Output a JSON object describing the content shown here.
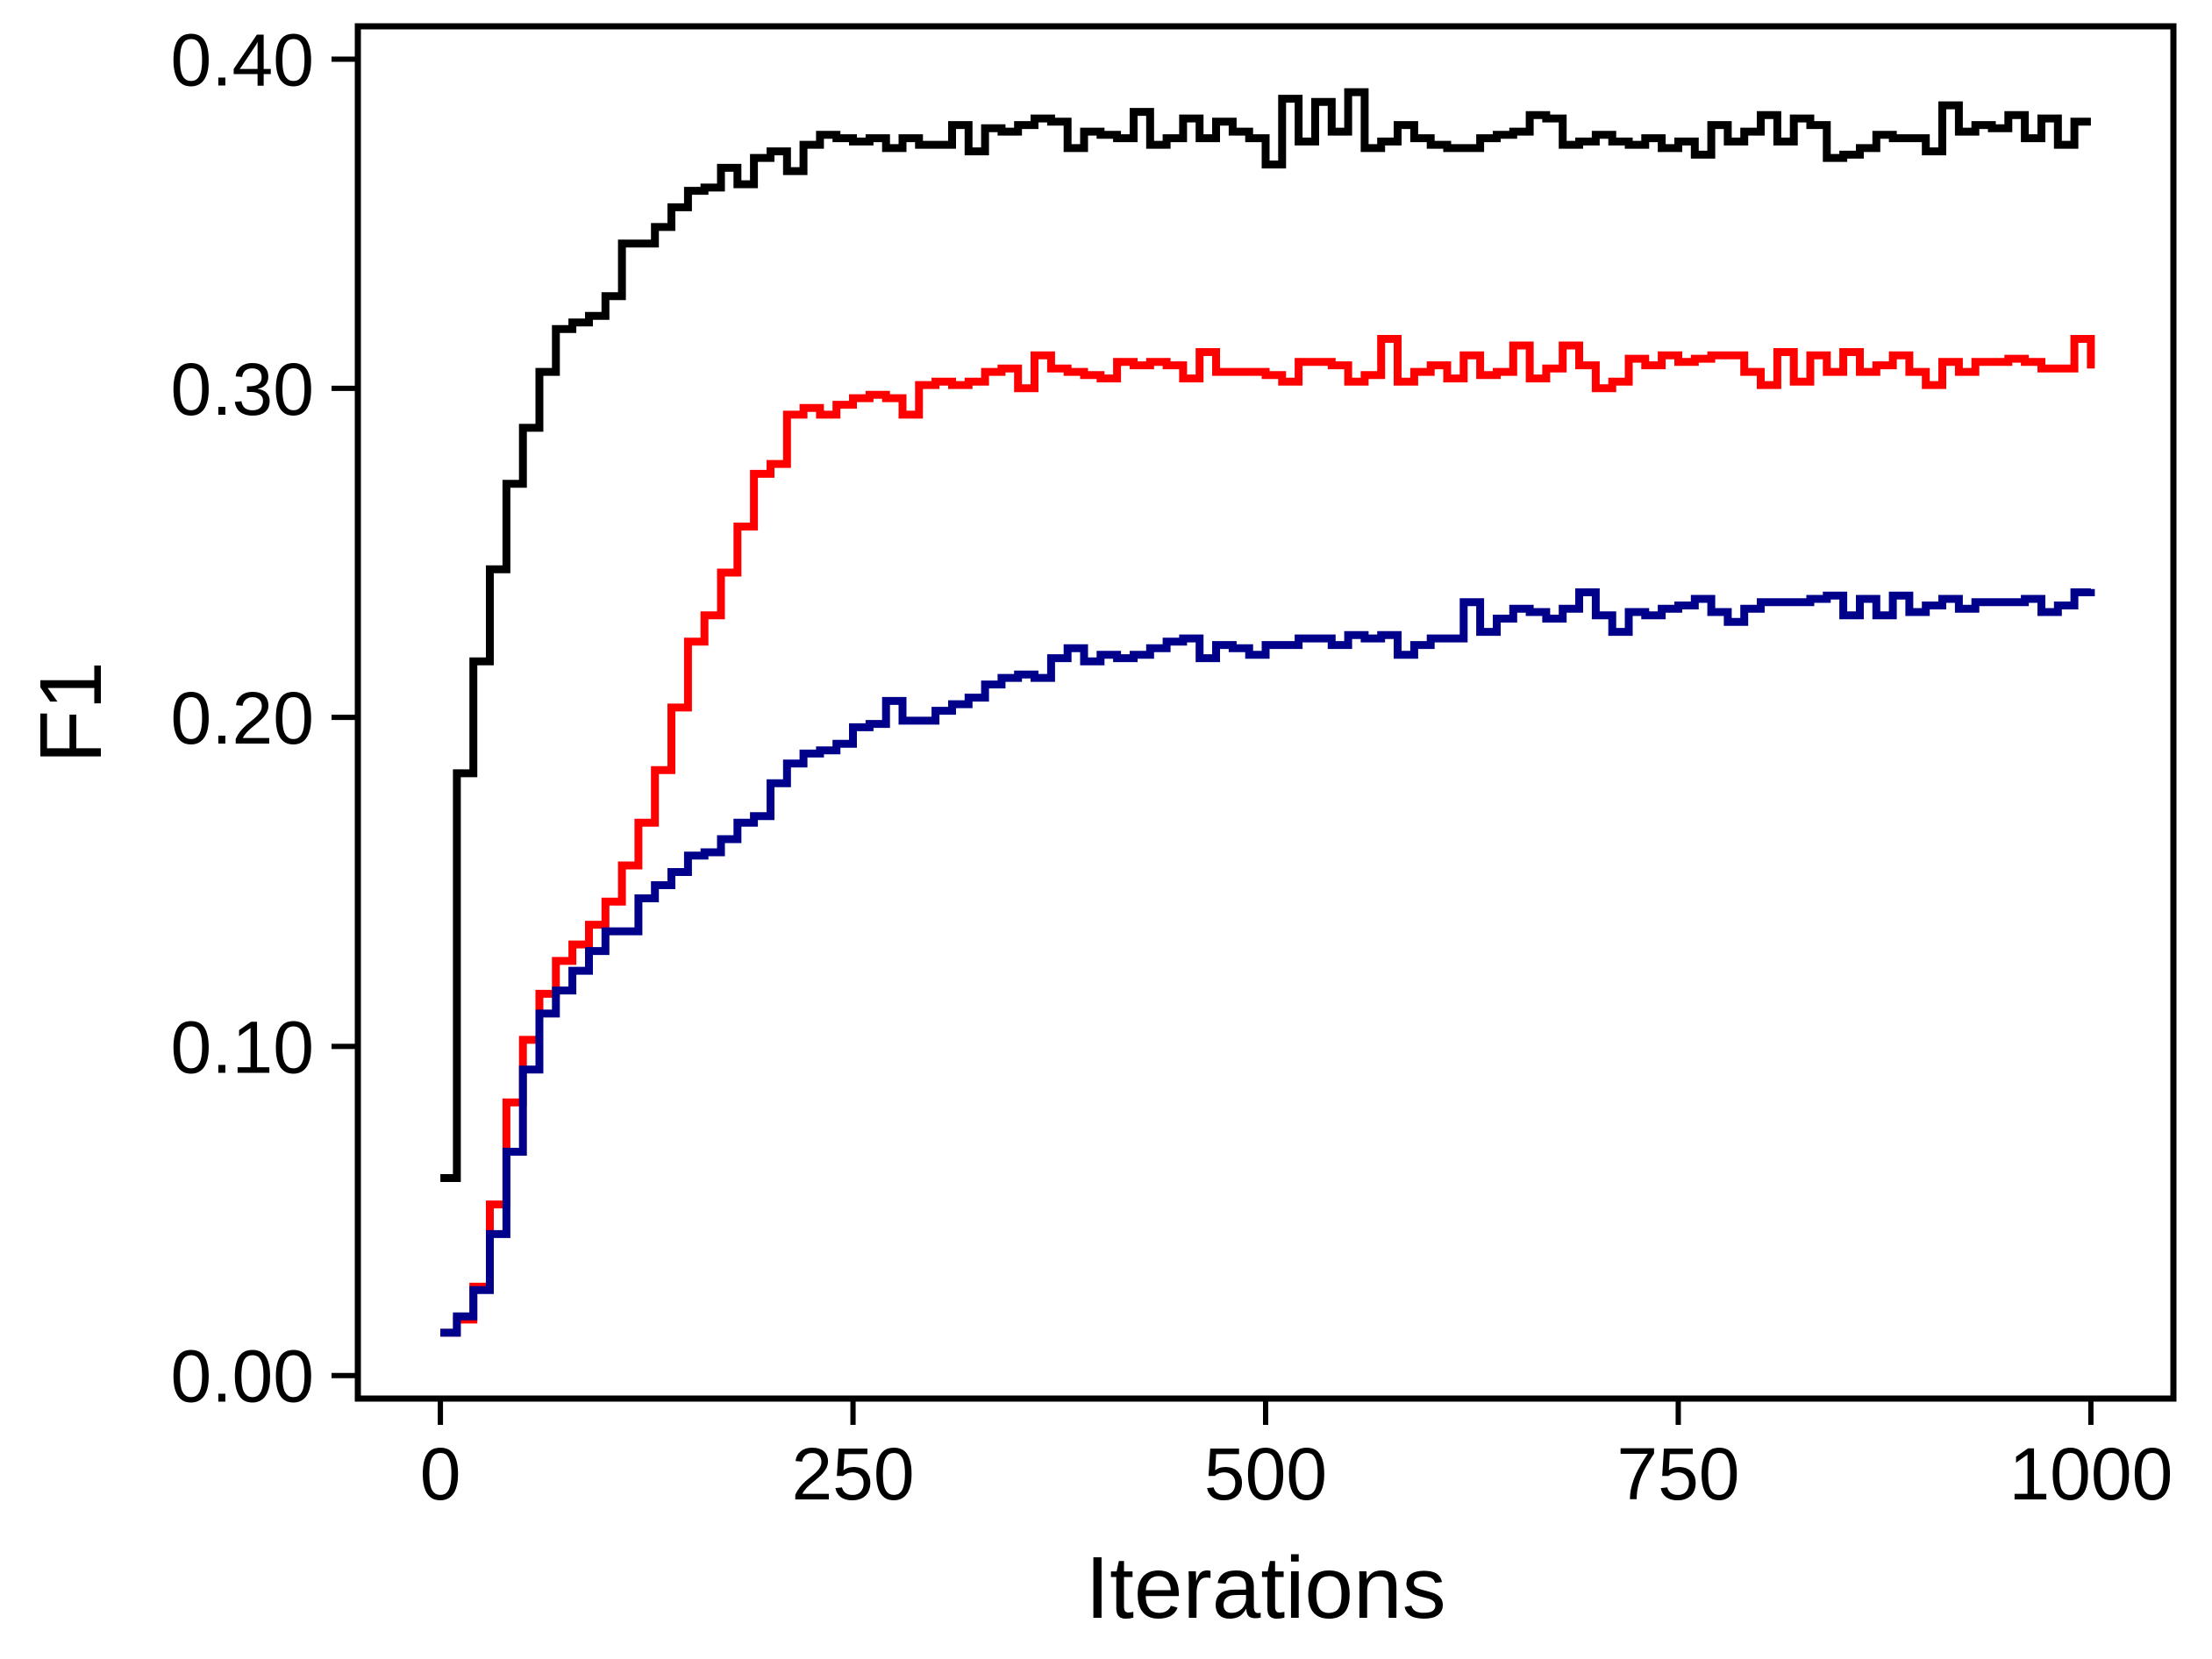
{
  "chart_data": {
    "type": "line",
    "title": "",
    "xlabel": "Iterations",
    "ylabel": "F1",
    "xlim": [
      -50,
      1050
    ],
    "ylim": [
      -0.007,
      0.41
    ],
    "x_ticks": [
      0,
      250,
      500,
      750,
      1000
    ],
    "x_tick_labels": [
      "0",
      "250",
      "500",
      "750",
      "1000"
    ],
    "y_ticks": [
      0.0,
      0.1,
      0.2,
      0.3,
      0.4
    ],
    "y_tick_labels": [
      "0.00",
      "0.10",
      "0.20",
      "0.30",
      "0.40"
    ],
    "grid": false,
    "legend": "none",
    "step_width": 10,
    "series": [
      {
        "color": "#000000",
        "x": [
          0,
          10,
          20,
          30,
          40,
          50,
          60,
          70,
          80,
          90,
          100,
          110,
          120,
          130,
          140,
          150,
          160,
          170,
          180,
          190,
          200,
          210,
          220,
          230,
          240,
          250,
          260,
          270,
          280,
          290,
          300,
          310,
          320,
          330,
          340,
          350,
          360,
          370,
          380,
          390,
          400,
          410,
          420,
          430,
          440,
          450,
          460,
          470,
          480,
          490,
          500,
          510,
          520,
          530,
          540,
          550,
          560,
          570,
          580,
          590,
          600,
          610,
          620,
          630,
          640,
          650,
          660,
          670,
          680,
          690,
          700,
          710,
          720,
          730,
          740,
          750,
          760,
          770,
          780,
          790,
          800,
          810,
          820,
          830,
          840,
          850,
          860,
          870,
          880,
          890,
          900,
          910,
          920,
          930,
          940,
          950,
          960,
          970,
          980,
          990,
          1000
        ],
        "values": [
          0.06,
          0.183,
          0.217,
          0.245,
          0.271,
          0.288,
          0.305,
          0.318,
          0.32,
          0.322,
          0.328,
          0.344,
          0.344,
          0.349,
          0.355,
          0.36,
          0.361,
          0.367,
          0.362,
          0.37,
          0.372,
          0.366,
          0.374,
          0.377,
          0.376,
          0.375,
          0.376,
          0.373,
          0.376,
          0.374,
          0.374,
          0.38,
          0.372,
          0.379,
          0.378,
          0.38,
          0.382,
          0.381,
          0.373,
          0.378,
          0.377,
          0.376,
          0.384,
          0.374,
          0.376,
          0.382,
          0.376,
          0.381,
          0.378,
          0.376,
          0.368,
          0.388,
          0.375,
          0.387,
          0.378,
          0.39,
          0.373,
          0.375,
          0.38,
          0.376,
          0.374,
          0.373,
          0.373,
          0.376,
          0.377,
          0.378,
          0.383,
          0.382,
          0.374,
          0.375,
          0.377,
          0.375,
          0.374,
          0.376,
          0.373,
          0.375,
          0.371,
          0.38,
          0.375,
          0.378,
          0.383,
          0.375,
          0.382,
          0.38,
          0.37,
          0.371,
          0.373,
          0.377,
          0.376,
          0.376,
          0.372,
          0.386,
          0.378,
          0.38,
          0.379,
          0.383,
          0.376,
          0.382,
          0.374,
          0.381,
          0.381
        ]
      },
      {
        "color": "#ff0000",
        "x": [
          0,
          10,
          20,
          30,
          40,
          50,
          60,
          70,
          80,
          90,
          100,
          110,
          120,
          130,
          140,
          150,
          160,
          170,
          180,
          190,
          200,
          210,
          220,
          230,
          240,
          250,
          260,
          270,
          280,
          290,
          300,
          310,
          320,
          330,
          340,
          350,
          360,
          370,
          380,
          390,
          400,
          410,
          420,
          430,
          440,
          450,
          460,
          470,
          480,
          490,
          500,
          510,
          520,
          530,
          540,
          550,
          560,
          570,
          580,
          590,
          600,
          610,
          620,
          630,
          640,
          650,
          660,
          670,
          680,
          690,
          700,
          710,
          720,
          730,
          740,
          750,
          760,
          770,
          780,
          790,
          800,
          810,
          820,
          830,
          840,
          850,
          860,
          870,
          880,
          890,
          900,
          910,
          920,
          930,
          940,
          950,
          960,
          970,
          980,
          990,
          1000
        ],
        "values": [
          0.013,
          0.017,
          0.027,
          0.052,
          0.083,
          0.102,
          0.116,
          0.126,
          0.131,
          0.137,
          0.144,
          0.155,
          0.168,
          0.184,
          0.203,
          0.223,
          0.231,
          0.244,
          0.258,
          0.274,
          0.277,
          0.292,
          0.294,
          0.292,
          0.295,
          0.297,
          0.298,
          0.297,
          0.292,
          0.301,
          0.302,
          0.301,
          0.302,
          0.305,
          0.306,
          0.3,
          0.31,
          0.306,
          0.305,
          0.304,
          0.303,
          0.308,
          0.307,
          0.308,
          0.307,
          0.303,
          0.311,
          0.305,
          0.305,
          0.305,
          0.304,
          0.302,
          0.308,
          0.308,
          0.307,
          0.302,
          0.304,
          0.315,
          0.302,
          0.305,
          0.307,
          0.303,
          0.31,
          0.304,
          0.305,
          0.313,
          0.303,
          0.306,
          0.313,
          0.307,
          0.3,
          0.302,
          0.309,
          0.307,
          0.31,
          0.308,
          0.309,
          0.31,
          0.31,
          0.305,
          0.301,
          0.311,
          0.302,
          0.31,
          0.305,
          0.311,
          0.305,
          0.307,
          0.31,
          0.305,
          0.301,
          0.308,
          0.305,
          0.308,
          0.308,
          0.309,
          0.308,
          0.306,
          0.306,
          0.315,
          0.306
        ]
      },
      {
        "color": "#00008b",
        "x": [
          0,
          10,
          20,
          30,
          40,
          50,
          60,
          70,
          80,
          90,
          100,
          110,
          120,
          130,
          140,
          150,
          160,
          170,
          180,
          190,
          200,
          210,
          220,
          230,
          240,
          250,
          260,
          270,
          280,
          290,
          300,
          310,
          320,
          330,
          340,
          350,
          360,
          370,
          380,
          390,
          400,
          410,
          420,
          430,
          440,
          450,
          460,
          470,
          480,
          490,
          500,
          510,
          520,
          530,
          540,
          550,
          560,
          570,
          580,
          590,
          600,
          610,
          620,
          630,
          640,
          650,
          660,
          670,
          680,
          690,
          700,
          710,
          720,
          730,
          740,
          750,
          760,
          770,
          780,
          790,
          800,
          810,
          820,
          830,
          840,
          850,
          860,
          870,
          880,
          890,
          900,
          910,
          920,
          930,
          940,
          950,
          960,
          970,
          980,
          990,
          1000
        ],
        "values": [
          0.013,
          0.018,
          0.026,
          0.043,
          0.068,
          0.093,
          0.11,
          0.117,
          0.123,
          0.129,
          0.135,
          0.135,
          0.145,
          0.149,
          0.153,
          0.158,
          0.159,
          0.163,
          0.168,
          0.17,
          0.18,
          0.186,
          0.189,
          0.19,
          0.192,
          0.197,
          0.198,
          0.205,
          0.199,
          0.199,
          0.202,
          0.204,
          0.206,
          0.21,
          0.212,
          0.213,
          0.212,
          0.218,
          0.221,
          0.217,
          0.219,
          0.218,
          0.219,
          0.221,
          0.223,
          0.224,
          0.218,
          0.222,
          0.221,
          0.219,
          0.222,
          0.222,
          0.224,
          0.224,
          0.222,
          0.225,
          0.224,
          0.225,
          0.219,
          0.222,
          0.224,
          0.224,
          0.235,
          0.226,
          0.23,
          0.233,
          0.232,
          0.23,
          0.233,
          0.238,
          0.231,
          0.226,
          0.232,
          0.231,
          0.233,
          0.234,
          0.236,
          0.232,
          0.229,
          0.233,
          0.235,
          0.235,
          0.235,
          0.236,
          0.237,
          0.231,
          0.236,
          0.231,
          0.237,
          0.232,
          0.234,
          0.236,
          0.233,
          0.235,
          0.235,
          0.235,
          0.236,
          0.232,
          0.234,
          0.238,
          0.239
        ]
      }
    ]
  }
}
